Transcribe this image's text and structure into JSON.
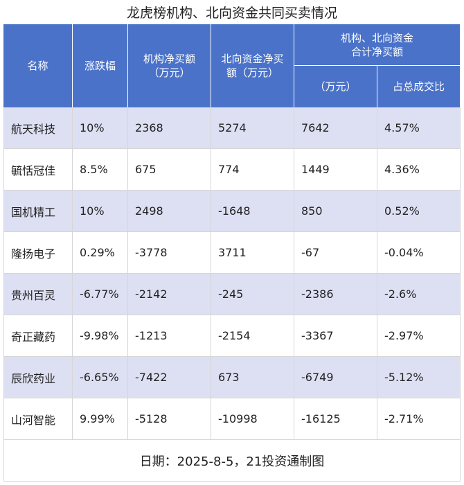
{
  "title": "龙虎榜机构、北向资金共同买卖情况",
  "header": {
    "columns": [
      "名称",
      "涨跌幅",
      "机构净买额\n（万元）",
      "北向资金净买\n额（万元）"
    ],
    "group": "机构、北向资金\n合计净买额",
    "subcolumns": [
      "（万元）",
      "占总成交比"
    ]
  },
  "table": {
    "rows": [
      [
        "航天科技",
        "10%",
        "2368",
        "5274",
        "7642",
        "4.57%"
      ],
      [
        "毓恬冠佳",
        "8.5%",
        "675",
        "774",
        "1449",
        "4.36%"
      ],
      [
        "国机精工",
        "10%",
        "2498",
        "-1648",
        "850",
        "0.52%"
      ],
      [
        "隆扬电子",
        "0.29%",
        "-3778",
        "3711",
        "-67",
        "-0.04%"
      ],
      [
        "贵州百灵",
        "-6.77%",
        "-2142",
        "-245",
        "-2386",
        "-2.6%"
      ],
      [
        "奇正藏药",
        "-9.98%",
        "-1213",
        "-2154",
        "-3367",
        "-2.97%"
      ],
      [
        "辰欣药业",
        "-6.65%",
        "-7422",
        "673",
        "-6749",
        "-5.12%"
      ],
      [
        "山河智能",
        "9.99%",
        "-5128",
        "-10998",
        "-16125",
        "-2.71%"
      ]
    ]
  },
  "footer": "日期：2025-8-5，21投资通制图"
}
